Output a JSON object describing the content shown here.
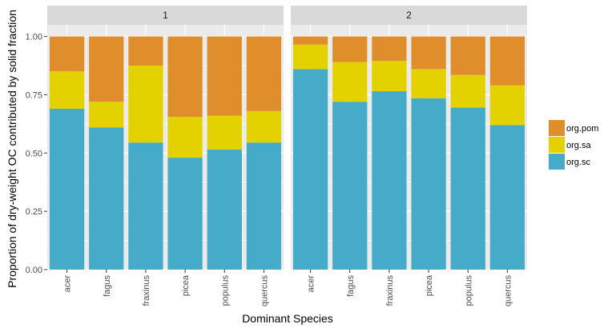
{
  "chart_data": {
    "type": "bar",
    "stacked": true,
    "facet": "panels side by side, strip labels on top",
    "xlabel": "Dominant Species",
    "ylabel": "Proportion of dry-weight OC contributed by solid fraction",
    "ylim": [
      0,
      1.05
    ],
    "yticks": [
      0.0,
      0.25,
      0.5,
      0.75,
      1.0
    ],
    "ytick_labels": [
      "0.00",
      "0.25",
      "0.50",
      "0.75",
      "1.00"
    ],
    "categories": [
      "acer",
      "fagus",
      "fraxinus",
      "picea",
      "populus",
      "quercus"
    ],
    "legend": {
      "placement": "right",
      "entries": [
        "org.pom",
        "org.sa",
        "org.sc"
      ]
    },
    "colors": {
      "org.pom": "#E08E2C",
      "org.sa": "#E3D200",
      "org.sc": "#46ABC9",
      "panel_bg": "#EBEBEB",
      "strip_bg": "#D9D9D9",
      "grid": "#FFFFFF"
    },
    "panels": [
      {
        "label": "1",
        "series": [
          {
            "name": "org.sc",
            "values": [
              0.69,
              0.61,
              0.545,
              0.48,
              0.515,
              0.545
            ]
          },
          {
            "name": "org.sa",
            "values": [
              0.16,
              0.11,
              0.33,
              0.175,
              0.145,
              0.135
            ]
          },
          {
            "name": "org.pom",
            "values": [
              0.15,
              0.28,
              0.125,
              0.345,
              0.34,
              0.32
            ]
          }
        ]
      },
      {
        "label": "2",
        "series": [
          {
            "name": "org.sc",
            "values": [
              0.86,
              0.72,
              0.765,
              0.735,
              0.695,
              0.62
            ]
          },
          {
            "name": "org.sa",
            "values": [
              0.105,
              0.17,
              0.13,
              0.125,
              0.14,
              0.17
            ]
          },
          {
            "name": "org.pom",
            "values": [
              0.035,
              0.11,
              0.105,
              0.14,
              0.165,
              0.21
            ]
          }
        ]
      }
    ]
  }
}
